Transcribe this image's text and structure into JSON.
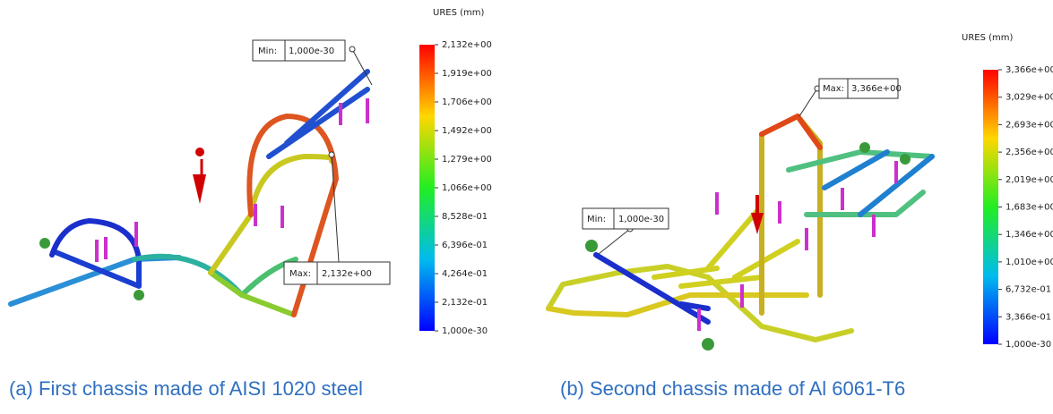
{
  "panels": [
    {
      "unit": "URES (mm)",
      "scale_labels": [
        "2,132e+00",
        "1,919e+00",
        "1,706e+00",
        "1,492e+00",
        "1,279e+00",
        "1,066e+00",
        "8,528e-01",
        "6,396e-01",
        "4,264e-01",
        "2,132e-01",
        "1,000e-30"
      ],
      "min_label": "Min:",
      "min_value": "1,000e-30",
      "max_label": "Max:",
      "max_value": "2,132e+00",
      "caption": "(a) First chassis made of AISI 1020 steel"
    },
    {
      "unit": "URES (mm)",
      "scale_labels": [
        "3,366e+00",
        "3,029e+00",
        "2,693e+00",
        "2,356e+00",
        "2,019e+00",
        "1,683e+00",
        "1,346e+00",
        "1,010e+00",
        "6,732e-01",
        "3,366e-01",
        "1,000e-30"
      ],
      "min_label": "Min:",
      "min_value": "1,000e-30",
      "max_label": "Max:",
      "max_value": "3,366e+00",
      "caption": "(b) Second chassis made of Al 6061-T6"
    }
  ]
}
